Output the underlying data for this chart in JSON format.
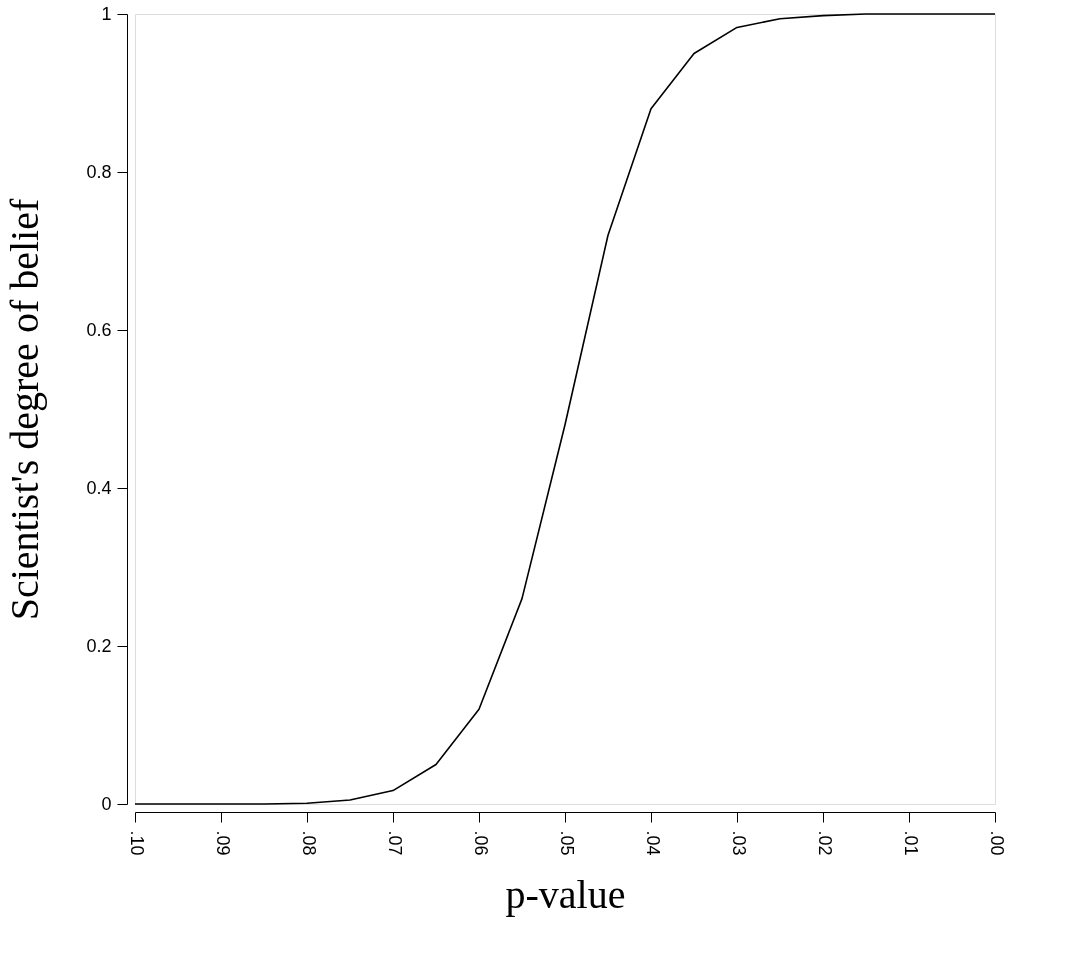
{
  "chart_data": {
    "type": "line",
    "xlabel": "p-value",
    "ylabel": "Scientist's degree of belief",
    "x": [
      0.1,
      0.095,
      0.09,
      0.085,
      0.08,
      0.075,
      0.07,
      0.065,
      0.06,
      0.055,
      0.05,
      0.045,
      0.04,
      0.035,
      0.03,
      0.025,
      0.02,
      0.015,
      0.01,
      0.005,
      0.0
    ],
    "series": [
      {
        "color": "#000000",
        "values": [
          0,
          0,
          0,
          0,
          0.001,
          0.005,
          0.017,
          0.05,
          0.12,
          0.26,
          0.48,
          0.72,
          0.88,
          0.95,
          0.983,
          0.994,
          0.998,
          1,
          1,
          1,
          1
        ]
      }
    ],
    "xlim": [
      0.1,
      0.0
    ],
    "xticks": [
      {
        "value": 0.1,
        "label": ".10"
      },
      {
        "value": 0.09,
        "label": ".09"
      },
      {
        "value": 0.08,
        "label": ".08"
      },
      {
        "value": 0.07,
        "label": ".07"
      },
      {
        "value": 0.06,
        "label": ".06"
      },
      {
        "value": 0.05,
        "label": ".05"
      },
      {
        "value": 0.04,
        "label": ".04"
      },
      {
        "value": 0.03,
        "label": ".03"
      },
      {
        "value": 0.02,
        "label": ".02"
      },
      {
        "value": 0.01,
        "label": ".01"
      },
      {
        "value": 0.0,
        "label": ".00"
      }
    ],
    "ylim": [
      0,
      1
    ],
    "yticks": [
      0,
      0.2,
      0.4,
      0.6,
      0.8,
      1
    ],
    "grid": false,
    "marker": "none",
    "line_style": "solid"
  }
}
